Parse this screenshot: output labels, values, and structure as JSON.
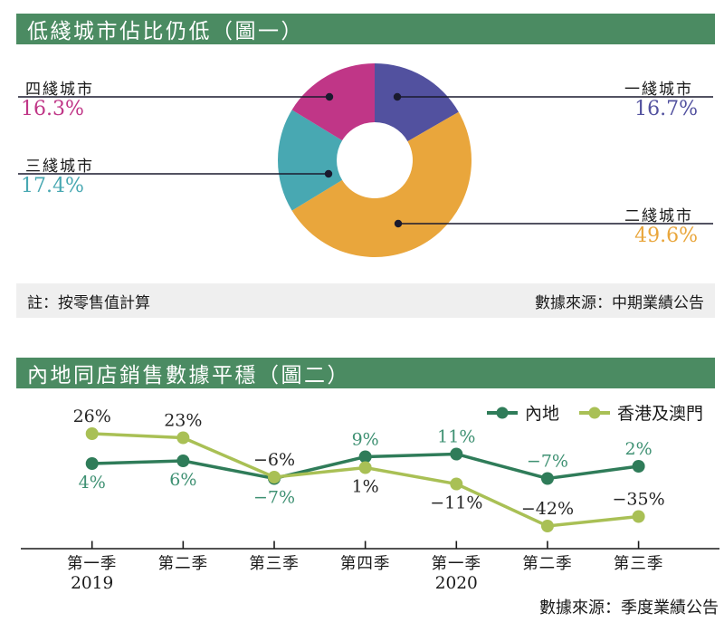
{
  "figure1": {
    "title": "低綫城市佔比仍低（圖一）",
    "note": "註：按零售值計算",
    "source": "數據來源：中期業績公告"
  },
  "figure2": {
    "title": "內地同店銷售數據平穩（圖二）",
    "source": "數據來源：季度業績公告"
  },
  "colors": {
    "header_green": "#4b8b62",
    "note_band_gray": "#efefef",
    "leader_line": "#1a1a2e",
    "axis_black": "#1a1a1a"
  },
  "chart_data": [
    {
      "type": "pie",
      "title": "低綫城市佔比仍低（圖一）",
      "donut": true,
      "note": "註：按零售值計算",
      "source": "數據來源：中期業績公告",
      "slices": [
        {
          "name": "一綫城市",
          "value": 16.7,
          "value_label": "16.7%",
          "color": "#52519f",
          "label_side": "right"
        },
        {
          "name": "二綫城市",
          "value": 49.6,
          "value_label": "49.6%",
          "color": "#e9a63c",
          "label_side": "right"
        },
        {
          "name": "三綫城市",
          "value": 17.4,
          "value_label": "17.4%",
          "color": "#48a8b2",
          "label_side": "left"
        },
        {
          "name": "四綫城市",
          "value": 16.3,
          "value_label": "16.3%",
          "color": "#c03687",
          "label_side": "left"
        }
      ]
    },
    {
      "type": "line",
      "title": "內地同店銷售數據平穩（圖二）",
      "source": "數據來源：季度業績公告",
      "categories": [
        "第一季",
        "第二季",
        "第三季",
        "第四季",
        "第一季",
        "第二季",
        "第三季"
      ],
      "year_labels": [
        {
          "index": 0,
          "text": "2019"
        },
        {
          "index": 4,
          "text": "2020"
        }
      ],
      "legend_position": "top-right",
      "grid": false,
      "ylim": [
        -50,
        30
      ],
      "series": [
        {
          "name": "內地",
          "color": "#2f7c59",
          "label_color": "#3f9173",
          "values": [
            4,
            6,
            -7,
            9,
            11,
            -7,
            2
          ],
          "labels": [
            "4%",
            "6%",
            "−7%",
            "9%",
            "11%",
            "−7%",
            "2%"
          ],
          "label_positions": [
            "below",
            "below",
            "below",
            "above",
            "above",
            "above",
            "above"
          ]
        },
        {
          "name": "香港及澳門",
          "color": "#a9c055",
          "label_color": "#262626",
          "values": [
            26,
            23,
            -6,
            1,
            -11,
            -42,
            -35
          ],
          "labels": [
            "26%",
            "23%",
            "−6%",
            "1%",
            "−11%",
            "−42%",
            "−35%"
          ],
          "label_positions": [
            "above",
            "above",
            "above",
            "below",
            "below",
            "above",
            "above"
          ]
        }
      ]
    }
  ]
}
